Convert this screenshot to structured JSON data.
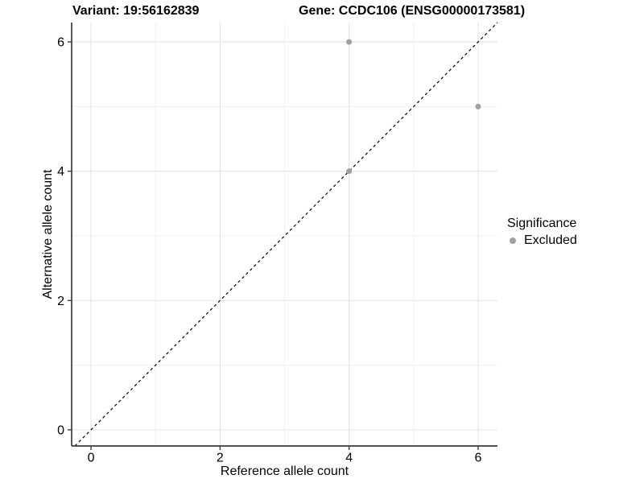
{
  "title": {
    "left": "Variant: 19:56162839",
    "right": "Gene: CCDC106 (ENSG00000173581)"
  },
  "axes": {
    "x_label": "Reference allele count",
    "y_label": "Alternative allele count"
  },
  "legend": {
    "title": "Significance",
    "items": [
      {
        "label": "Excluded",
        "color": "#a0a0a0"
      }
    ]
  },
  "chart_data": {
    "type": "scatter",
    "titles": {
      "left": "Variant: 19:56162839",
      "right": "Gene: CCDC106 (ENSG00000173581)"
    },
    "xlabel": "Reference allele count",
    "ylabel": "Alternative allele count",
    "xlim": [
      -0.3,
      6.3
    ],
    "ylim": [
      -0.25,
      6.3
    ],
    "xticks": [
      "0",
      "2",
      "4",
      "6"
    ],
    "xtick_values": [
      0,
      2,
      4,
      6
    ],
    "yticks": [
      "0",
      "2",
      "4",
      "6"
    ],
    "ytick_values": [
      0,
      2,
      4,
      6
    ],
    "minor_xticks": [
      1,
      3,
      5
    ],
    "minor_yticks": [
      1,
      3,
      5
    ],
    "grid": true,
    "legend_position": "right",
    "series": [
      {
        "name": "Excluded",
        "color": "#a0a0a0",
        "points": [
          [
            4,
            6
          ],
          [
            6,
            5
          ],
          [
            4,
            4
          ]
        ]
      }
    ],
    "reference_line": {
      "type": "identity",
      "style": "dashed",
      "color": "#000000"
    }
  },
  "colors": {
    "background": "#ffffff",
    "grid_major": "#e5e5e5",
    "grid_minor": "#f1f1f1",
    "axis_line": "#3c3c3c",
    "tick": "#3c3c3c",
    "point": "#a0a0a0",
    "text": "#000000"
  }
}
